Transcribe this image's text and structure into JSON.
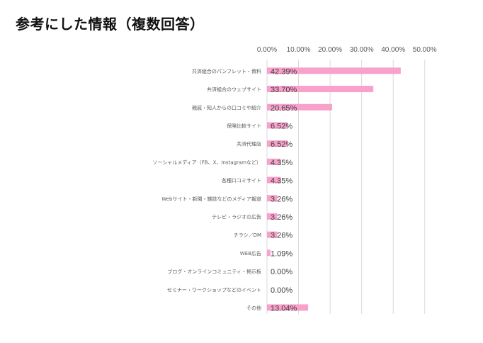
{
  "page": {
    "title": "参考にした情報（複数回答）"
  },
  "chart_data": {
    "type": "bar",
    "orientation": "horizontal",
    "title": "参考にした情報（複数回答）",
    "xlabel": "",
    "ylabel": "",
    "xlim": [
      0,
      50
    ],
    "x_ticks": [
      0,
      10,
      20,
      30,
      40,
      50
    ],
    "x_tick_labels": [
      "0.00%",
      "10.00%",
      "20.00%",
      "30.00%",
      "40.00%",
      "50.00%"
    ],
    "x_axis_position": "top",
    "grid": true,
    "legend": "none",
    "bar_color": "#F7A1CB",
    "categories": [
      "共済組合のパンフレット・資料",
      "共済組合のウェブサイト",
      "親戚・知人からの口コミや紹介",
      "保険比較サイト",
      "共済代理店",
      "ソーシャルメディア（FB、X、Instagramなど）",
      "各種口コミサイト",
      "Webサイト・新聞・雑誌などのメディア報道",
      "テレビ・ラジオの広告",
      "チラシ／DM",
      "WEB広告",
      "ブログ・オンラインコミュニティ・掲示板",
      "セミナー・ワークショップなどのイベント",
      "その他"
    ],
    "values": [
      42.39,
      33.7,
      20.65,
      6.52,
      6.52,
      4.35,
      4.35,
      3.26,
      3.26,
      3.26,
      1.09,
      0.0,
      0.0,
      13.04
    ],
    "data_labels": [
      "42.39%",
      "33.70%",
      "20.65%",
      "6.52%",
      "6.52%",
      "4.35%",
      "4.35%",
      "3.26%",
      "3.26%",
      "3.26%",
      "1.09%",
      "0.00%",
      "0.00%",
      "13.04%"
    ]
  }
}
